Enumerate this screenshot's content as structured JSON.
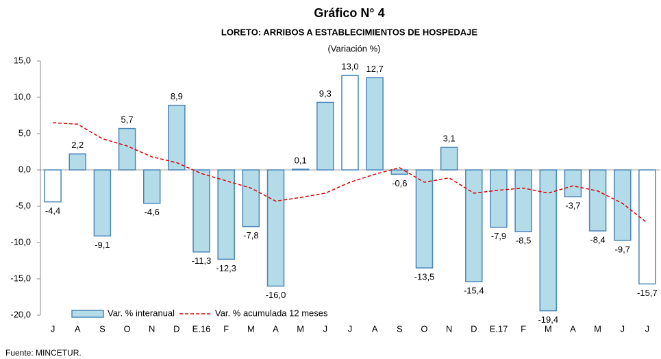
{
  "chart_data": {
    "type": "bar",
    "title": "Gráfico N° 4",
    "subtitle": "LORETO: ARRIBOS A ESTABLECIMIENTOS DE HOSPEDAJE",
    "unit_note": "(Variación %)",
    "source": "Fuente: MINCETUR.",
    "categories": [
      "J",
      "A",
      "S",
      "O",
      "N",
      "D",
      "E.16",
      "F",
      "M",
      "A",
      "M",
      "J",
      "J",
      "A",
      "S",
      "O",
      "N",
      "D",
      "E.17",
      "F",
      "M",
      "A",
      "M",
      "J",
      "J"
    ],
    "ylim": [
      -20,
      15
    ],
    "yticks": [
      {
        "value": -20,
        "label": "-20,0"
      },
      {
        "value": -15,
        "label": "-15,0"
      },
      {
        "value": -10,
        "label": "-10,0"
      },
      {
        "value": -5,
        "label": "-5,0"
      },
      {
        "value": 0,
        "label": "0,0"
      },
      {
        "value": 5,
        "label": "5,0"
      },
      {
        "value": 10,
        "label": "10,0"
      },
      {
        "value": 15,
        "label": "15,0"
      }
    ],
    "legend": "bottom-left",
    "series": [
      {
        "name": "Var. % interanual",
        "type": "bar",
        "color": "#b4dbe8",
        "edge_color": "#4a86b8",
        "values": [
          -4.4,
          2.2,
          -9.1,
          5.7,
          -4.6,
          8.9,
          -11.3,
          -12.3,
          -7.8,
          -16.0,
          0.1,
          9.3,
          13.0,
          12.7,
          -0.6,
          -13.5,
          3.1,
          -15.4,
          -7.9,
          -8.5,
          -19.4,
          -3.7,
          -8.4,
          -9.7,
          -15.7
        ],
        "value_labels": [
          "-4,4",
          "2,2",
          "-9,1",
          "5,7",
          "-4,6",
          "8,9",
          "-11,3",
          "-12,3",
          "-7,8",
          "-16,0",
          "0,1",
          "9,3",
          "13,0",
          "12,7",
          "-0,6",
          "-13,5",
          "3,1",
          "-15,4",
          "-7,9",
          "-8,5",
          "-19,4",
          "-3,7",
          "-8,4",
          "-9,7",
          "-15,7"
        ],
        "colors": [
          "#ffffff",
          "#b4dbe8",
          "#b4dbe8",
          "#b4dbe8",
          "#b4dbe8",
          "#b4dbe8",
          "#b4dbe8",
          "#b4dbe8",
          "#b4dbe8",
          "#b4dbe8",
          "#b4dbe8",
          "#b4dbe8",
          "#ffffff",
          "#b4dbe8",
          "#b4dbe8",
          "#b4dbe8",
          "#b4dbe8",
          "#b4dbe8",
          "#b4dbe8",
          "#b4dbe8",
          "#b4dbe8",
          "#b4dbe8",
          "#b4dbe8",
          "#b4dbe8",
          "#ffffff"
        ]
      },
      {
        "name": "Var. % acumulada 12 meses",
        "type": "line",
        "color": "#e00000",
        "values": [
          6.5,
          6.3,
          4.3,
          3.3,
          1.8,
          1.0,
          -0.5,
          -1.5,
          -2.5,
          -4.3,
          -3.8,
          -3.2,
          -1.7,
          -0.6,
          0.3,
          -1.7,
          -1.1,
          -3.2,
          -2.8,
          -2.5,
          -3.2,
          -2.2,
          -2.9,
          -4.6,
          -7.3
        ]
      }
    ]
  }
}
